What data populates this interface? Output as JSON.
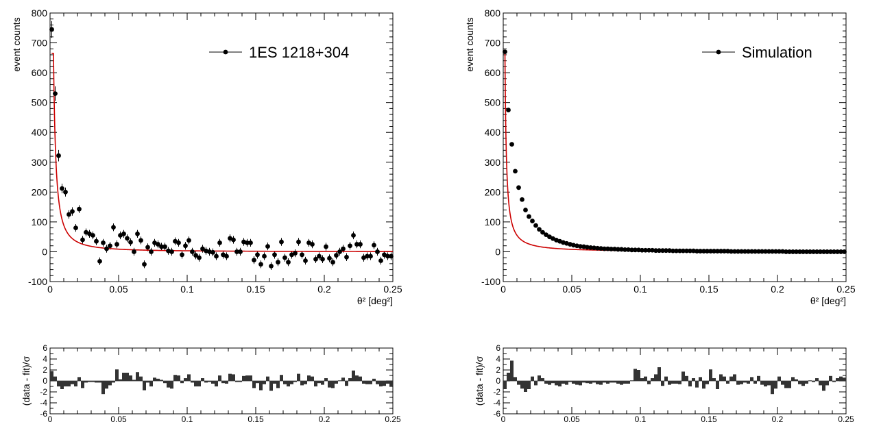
{
  "chart_data": [
    {
      "type": "scatter",
      "panel": "top-left",
      "xlabel": "θ² [deg²]",
      "ylabel": "event counts",
      "xlim": [
        0,
        0.25
      ],
      "ylim": [
        -100,
        800
      ],
      "xticks": [
        "0",
        "0.05",
        "0.1",
        "0.15",
        "0.2",
        "0.25"
      ],
      "yticks": [
        "-100",
        "0",
        "100",
        "200",
        "300",
        "400",
        "500",
        "600",
        "700",
        "800"
      ],
      "legend": {
        "label": "1ES 1218+304",
        "placement": "top-right"
      },
      "fit": {
        "color": "#cc0000",
        "form": "power-law",
        "amplitude": 665,
        "x0": 0.0025,
        "index": 1.45
      },
      "marker_color": "#000000",
      "points": {
        "x": [
          0.00125,
          0.00375,
          0.00625,
          0.00875,
          0.01125,
          0.01375,
          0.01625,
          0.01875,
          0.02125,
          0.02375,
          0.02625,
          0.02875,
          0.03125,
          0.03375,
          0.03625,
          0.03875,
          0.04125,
          0.04375,
          0.04625,
          0.04875,
          0.05125,
          0.05375,
          0.05625,
          0.05875,
          0.06125,
          0.06375,
          0.06625,
          0.06875,
          0.07125,
          0.07375,
          0.07625,
          0.07875,
          0.08125,
          0.08375,
          0.08625,
          0.08875,
          0.09125,
          0.09375,
          0.09625,
          0.09875,
          0.10125,
          0.10375,
          0.10625,
          0.10875,
          0.11125,
          0.11375,
          0.11625,
          0.11875,
          0.12125,
          0.12375,
          0.12625,
          0.12875,
          0.13125,
          0.13375,
          0.13625,
          0.13875,
          0.14125,
          0.14375,
          0.14625,
          0.14875,
          0.15125,
          0.15375,
          0.15625,
          0.15875,
          0.16125,
          0.16375,
          0.16625,
          0.16875,
          0.17125,
          0.17375,
          0.17625,
          0.17875,
          0.18125,
          0.18375,
          0.18625,
          0.18875,
          0.19125,
          0.19375,
          0.19625,
          0.19875,
          0.20125,
          0.20375,
          0.20625,
          0.20875,
          0.21125,
          0.21375,
          0.21625,
          0.21875,
          0.22125,
          0.22375,
          0.22625,
          0.22875,
          0.23125,
          0.23375,
          0.23625,
          0.23875,
          0.24125,
          0.24375,
          0.24625,
          0.24875
        ],
        "y": [
          745,
          530,
          322,
          212,
          200,
          125,
          135,
          80,
          143,
          40,
          65,
          60,
          55,
          35,
          -32,
          30,
          10,
          20,
          82,
          25,
          55,
          60,
          45,
          32,
          0,
          60,
          38,
          -42,
          15,
          0,
          30,
          25,
          17,
          17,
          3,
          0,
          35,
          30,
          -10,
          20,
          38,
          0,
          -12,
          -20,
          10,
          3,
          0,
          -2,
          -15,
          30,
          -10,
          -15,
          45,
          40,
          0,
          0,
          33,
          30,
          30,
          -28,
          -10,
          -42,
          -15,
          18,
          -48,
          -10,
          -35,
          33,
          -20,
          -35,
          -10,
          -5,
          33,
          -10,
          -30,
          30,
          25,
          -25,
          -15,
          -25,
          17,
          -22,
          -35,
          -12,
          0,
          10,
          -18,
          20,
          55,
          25,
          25,
          -20,
          -15,
          -15,
          22,
          0,
          -30,
          -10,
          -15,
          -15
        ],
        "yerr": [
          28,
          24,
          19,
          16,
          15,
          14,
          14,
          13,
          13,
          13,
          13,
          13,
          13,
          13,
          13,
          13,
          13,
          13,
          13,
          13,
          13,
          13,
          13,
          13,
          13,
          13,
          13,
          13,
          13,
          13,
          13,
          13,
          13,
          13,
          13,
          13,
          13,
          13,
          13,
          13,
          13,
          13,
          13,
          13,
          13,
          13,
          13,
          13,
          13,
          13,
          13,
          13,
          13,
          13,
          13,
          13,
          13,
          13,
          13,
          13,
          13,
          13,
          13,
          13,
          13,
          13,
          13,
          13,
          13,
          13,
          13,
          13,
          13,
          13,
          13,
          13,
          13,
          13,
          13,
          13,
          13,
          13,
          13,
          13,
          13,
          13,
          13,
          13,
          13,
          13,
          13,
          13,
          13,
          13,
          13,
          13,
          13,
          13,
          13,
          13
        ]
      }
    },
    {
      "type": "bar",
      "panel": "bottom-left",
      "ylabel": "(data - fit)/σ",
      "xlim": [
        0,
        0.25
      ],
      "ylim": [
        -6,
        6
      ],
      "xticks": [
        "0",
        "0.05",
        "0.1",
        "0.15",
        "0.2",
        "0.25"
      ],
      "yticks": [
        "-6",
        "-4",
        "-2",
        "0",
        "2",
        "4",
        "6"
      ],
      "bar_color": "#333333",
      "values": [
        1.8,
        0.8,
        -1.0,
        -1.5,
        -1.0,
        -1.0,
        -0.6,
        -1.0,
        0.7,
        -1.3,
        -0.3,
        -0.2,
        -0.2,
        -0.3,
        -0.3,
        -2.4,
        -1.4,
        -0.8,
        -0.3,
        2.1,
        0.3,
        1.5,
        1.5,
        1.0,
        0.2,
        1.6,
        0.8,
        -1.7,
        -0.3,
        -1.0,
        0.6,
        0.4,
        0.2,
        -0.4,
        -1.2,
        -1.4,
        1.1,
        1.0,
        -0.4,
        0.5,
        1.2,
        -0.3,
        -1.0,
        -1.0,
        0.5,
        -0.3,
        -0.2,
        -0.5,
        -1.0,
        1.0,
        -0.4,
        -0.5,
        1.3,
        1.2,
        -0.2,
        -0.2,
        0.9,
        1.0,
        1.0,
        -1.3,
        -0.4,
        -1.7,
        -0.6,
        0.8,
        -1.8,
        -0.5,
        -1.3,
        1.1,
        -0.6,
        -1.0,
        -0.6,
        -0.2,
        1.3,
        -0.8,
        -0.6,
        1.0,
        0.8,
        -1.0,
        -0.4,
        -0.7,
        0.5,
        -1.2,
        -1.3,
        -0.5,
        0.1,
        0.6,
        -0.9,
        0.5,
        1.9,
        1.0,
        0.8,
        -0.5,
        -0.6,
        -0.6,
        0.4,
        -0.6,
        -1.0,
        -0.9,
        -0.5,
        -1.0
      ]
    },
    {
      "type": "scatter",
      "panel": "top-right",
      "xlabel": "θ² [deg²]",
      "ylabel": "event counts",
      "xlim": [
        0,
        0.25
      ],
      "ylim": [
        -100,
        800
      ],
      "xticks": [
        "0",
        "0.05",
        "0.1",
        "0.15",
        "0.2",
        "0.25"
      ],
      "yticks": [
        "-100",
        "0",
        "100",
        "200",
        "300",
        "400",
        "500",
        "600",
        "700",
        "800"
      ],
      "legend": {
        "label": "Simulation",
        "placement": "top-right"
      },
      "fit": {
        "color": "#cc0000",
        "form": "power-law",
        "amplitude": 670,
        "x0": 0.00125,
        "index": 1.2
      },
      "marker_color": "#000000",
      "points": {
        "x": [
          0.00125,
          0.00375,
          0.00625,
          0.00875,
          0.01125,
          0.01375,
          0.01625,
          0.01875,
          0.02125,
          0.02375,
          0.02625,
          0.02875,
          0.03125,
          0.03375,
          0.03625,
          0.03875,
          0.04125,
          0.04375,
          0.04625,
          0.04875,
          0.05125,
          0.05375,
          0.05625,
          0.05875,
          0.06125,
          0.06375,
          0.06625,
          0.06875,
          0.07125,
          0.07375,
          0.07625,
          0.07875,
          0.08125,
          0.08375,
          0.08625,
          0.08875,
          0.09125,
          0.09375,
          0.09625,
          0.09875,
          0.10125,
          0.10375,
          0.10625,
          0.10875,
          0.11125,
          0.11375,
          0.11625,
          0.11875,
          0.12125,
          0.12375,
          0.12625,
          0.12875,
          0.13125,
          0.13375,
          0.13625,
          0.13875,
          0.14125,
          0.14375,
          0.14625,
          0.14875,
          0.15125,
          0.15375,
          0.15625,
          0.15875,
          0.16125,
          0.16375,
          0.16625,
          0.16875,
          0.17125,
          0.17375,
          0.17625,
          0.17875,
          0.18125,
          0.18375,
          0.18625,
          0.18875,
          0.19125,
          0.19375,
          0.19625,
          0.19875,
          0.20125,
          0.20375,
          0.20625,
          0.20875,
          0.21125,
          0.21375,
          0.21625,
          0.21875,
          0.22125,
          0.22375,
          0.22625,
          0.22875,
          0.23125,
          0.23375,
          0.23625,
          0.23875,
          0.24125,
          0.24375,
          0.24625,
          0.24875
        ],
        "y": [
          670,
          475,
          360,
          270,
          215,
          175,
          140,
          118,
          103,
          88,
          75,
          65,
          57,
          50,
          44,
          39,
          35,
          31,
          28,
          25,
          22,
          20,
          18,
          17,
          15,
          14,
          13,
          12,
          11,
          10,
          10,
          9,
          9,
          8,
          8,
          7,
          7,
          6,
          6,
          6,
          5,
          5,
          5,
          5,
          4,
          4,
          4,
          4,
          4,
          3,
          3,
          3,
          3,
          3,
          3,
          3,
          2,
          2,
          2,
          2,
          2,
          2,
          2,
          2,
          2,
          2,
          1,
          1,
          1,
          1,
          1,
          1,
          1,
          1,
          1,
          1,
          1,
          1,
          1,
          1,
          1,
          1,
          0,
          0,
          0,
          0,
          0,
          0,
          0,
          0,
          0,
          0,
          0,
          0,
          0,
          0,
          0,
          0,
          0,
          0
        ],
        "yerr": [
          5,
          4,
          4,
          3,
          3,
          3,
          2,
          2,
          2,
          2,
          2,
          2,
          2,
          2,
          2,
          2,
          2,
          2,
          2,
          2,
          2,
          2,
          2,
          2,
          2,
          2,
          2,
          2,
          2,
          2,
          2,
          2,
          2,
          2,
          2,
          2,
          2,
          2,
          2,
          2,
          2,
          2,
          2,
          2,
          2,
          2,
          2,
          2,
          2,
          2,
          2,
          2,
          2,
          2,
          2,
          2,
          2,
          2,
          2,
          2,
          2,
          2,
          2,
          2,
          2,
          2,
          2,
          2,
          2,
          2,
          2,
          2,
          2,
          2,
          2,
          2,
          2,
          2,
          2,
          2,
          2,
          2,
          2,
          2,
          2,
          2,
          2,
          2,
          2,
          2,
          2,
          2,
          2,
          2,
          2,
          2,
          2,
          2,
          2,
          2
        ]
      }
    },
    {
      "type": "bar",
      "panel": "bottom-right",
      "ylabel": "(data - fit)/σ",
      "xlim": [
        0,
        0.25
      ],
      "ylim": [
        -6,
        6
      ],
      "xticks": [
        "0",
        "0.05",
        "0.1",
        "0.15",
        "0.2",
        "0.25"
      ],
      "yticks": [
        "-6",
        "-4",
        "-2",
        "0",
        "2",
        "4",
        "6"
      ],
      "bar_color": "#333333",
      "values": [
        -1.5,
        1.5,
        3.7,
        0.7,
        -0.7,
        -1.4,
        -2.0,
        -1.5,
        0.8,
        -0.8,
        1.0,
        0.5,
        -0.5,
        -0.7,
        -0.4,
        -0.8,
        -1.0,
        -0.5,
        -0.7,
        -0.2,
        -0.5,
        -0.7,
        -0.8,
        -0.3,
        -0.4,
        -0.5,
        -0.3,
        -0.6,
        -0.7,
        -0.3,
        -0.5,
        -0.3,
        -0.3,
        -0.5,
        -0.7,
        -0.5,
        -0.5,
        0.1,
        2.2,
        2.0,
        0.5,
        0.8,
        -0.6,
        0.5,
        1.2,
        2.5,
        -0.9,
        0.8,
        -0.7,
        -0.5,
        -0.5,
        -0.6,
        1.7,
        0.9,
        -1.0,
        0.5,
        -1.2,
        0.7,
        -1.4,
        -0.6,
        2.1,
        0.5,
        -1.5,
        1.2,
        0.8,
        -0.5,
        0.8,
        1.2,
        -0.7,
        -0.6,
        -0.3,
        -0.5,
        0.7,
        -0.5,
        0.9,
        -0.7,
        -1.0,
        -0.8,
        -2.4,
        -1.4,
        0.8,
        -0.7,
        -1.3,
        -1.3,
        0.7,
        0.3,
        -0.6,
        -0.9,
        -0.5,
        0.1,
        -0.2,
        0.5,
        -0.8,
        -1.8,
        -0.8,
        0.9,
        -0.2,
        0.5,
        0.8,
        0.6
      ]
    }
  ]
}
